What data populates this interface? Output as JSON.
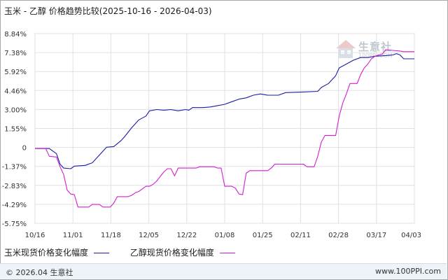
{
  "title": "玉米 - 乙醇 价格趋势比较(2025-10-16 - 2026-04-03)",
  "chart_data": {
    "type": "line",
    "title": "玉米 - 乙醇 价格趋势比较(2025-10-16 - 2026-04-03)",
    "ylim": [
      -5.75,
      8.84
    ],
    "y_ticks": [
      "8.84%",
      "7.38%",
      "5.92%",
      "4.46%",
      "3.00%",
      "1.55%",
      "0",
      "-1.37%",
      "-2.83%",
      "-4.29%",
      "-5.75%"
    ],
    "x_ticks": [
      "10/16",
      "11/01",
      "11/18",
      "12/05",
      "12/22",
      "01/08",
      "01/25",
      "02/11",
      "02/28",
      "03/17",
      "04/03"
    ],
    "grid": true,
    "legend_position": "bottom",
    "series": [
      {
        "name": "玉米现货价格变化幅度",
        "color": "#1c1ca8",
        "values": [
          [
            0,
            0.0
          ],
          [
            4,
            0.0
          ],
          [
            5,
            -0.2
          ],
          [
            6,
            -0.4
          ],
          [
            7,
            -1.2
          ],
          [
            8,
            -1.5
          ],
          [
            10,
            -1.55
          ],
          [
            11,
            -1.35
          ],
          [
            14,
            -1.3
          ],
          [
            16,
            -1.1
          ],
          [
            18,
            -0.5
          ],
          [
            20,
            0.1
          ],
          [
            22,
            0.15
          ],
          [
            24,
            0.6
          ],
          [
            25,
            0.9
          ],
          [
            27,
            1.6
          ],
          [
            29,
            2.2
          ],
          [
            31,
            2.5
          ],
          [
            32,
            2.9
          ],
          [
            34,
            3.0
          ],
          [
            36,
            2.95
          ],
          [
            38,
            3.0
          ],
          [
            40,
            2.9
          ],
          [
            42,
            3.0
          ],
          [
            43,
            2.95
          ],
          [
            44,
            3.15
          ],
          [
            47,
            3.15
          ],
          [
            49,
            3.2
          ],
          [
            51,
            3.3
          ],
          [
            53,
            3.4
          ],
          [
            55,
            3.6
          ],
          [
            57,
            3.8
          ],
          [
            59,
            3.9
          ],
          [
            61,
            4.1
          ],
          [
            63,
            4.2
          ],
          [
            65,
            4.1
          ],
          [
            68,
            4.1
          ],
          [
            70,
            4.3
          ],
          [
            75,
            4.35
          ],
          [
            79,
            4.4
          ],
          [
            80,
            4.7
          ],
          [
            82,
            5.0
          ],
          [
            84,
            5.6
          ],
          [
            85,
            6.2
          ],
          [
            87,
            6.5
          ],
          [
            89,
            6.8
          ],
          [
            91,
            7.0
          ],
          [
            93,
            7.0
          ],
          [
            95,
            7.1
          ],
          [
            98,
            7.15
          ],
          [
            100,
            7.2
          ],
          [
            101,
            7.3
          ],
          [
            102,
            7.2
          ],
          [
            103,
            6.9
          ],
          [
            106,
            6.9
          ]
        ]
      },
      {
        "name": "乙醇现货价格变化幅度",
        "color": "#d21ed2",
        "values": [
          [
            0,
            0.0
          ],
          [
            3,
            0.0
          ],
          [
            4,
            -0.6
          ],
          [
            6,
            -0.65
          ],
          [
            7,
            -1.4
          ],
          [
            8,
            -2.0
          ],
          [
            9,
            -3.2
          ],
          [
            10,
            -3.5
          ],
          [
            11,
            -3.55
          ],
          [
            12,
            -4.5
          ],
          [
            15,
            -4.5
          ],
          [
            16,
            -4.3
          ],
          [
            18,
            -4.3
          ],
          [
            19,
            -4.5
          ],
          [
            21,
            -4.5
          ],
          [
            22,
            -4.2
          ],
          [
            23,
            -3.7
          ],
          [
            26,
            -3.7
          ],
          [
            27,
            -3.6
          ],
          [
            28,
            -3.4
          ],
          [
            29,
            -3.3
          ],
          [
            30,
            -3.1
          ],
          [
            31,
            -2.9
          ],
          [
            32,
            -2.9
          ],
          [
            33,
            -2.75
          ],
          [
            34,
            -2.5
          ],
          [
            36,
            -1.8
          ],
          [
            37,
            -1.55
          ],
          [
            38,
            -1.55
          ],
          [
            39,
            -2.1
          ],
          [
            40,
            -1.5
          ],
          [
            45,
            -1.5
          ],
          [
            46,
            -1.4
          ],
          [
            50,
            -1.4
          ],
          [
            51,
            -1.5
          ],
          [
            52,
            -1.5
          ],
          [
            53,
            -2.9
          ],
          [
            55,
            -2.9
          ],
          [
            56,
            -3.05
          ],
          [
            57,
            -3.5
          ],
          [
            58,
            -3.55
          ],
          [
            59,
            -1.9
          ],
          [
            60,
            -1.7
          ],
          [
            65,
            -1.7
          ],
          [
            66,
            -1.5
          ],
          [
            67,
            -1.2
          ],
          [
            75,
            -1.2
          ],
          [
            76,
            -1.4
          ],
          [
            78,
            -1.4
          ],
          [
            79,
            -0.6
          ],
          [
            80,
            0.5
          ],
          [
            81,
            1.0
          ],
          [
            84,
            1.0
          ],
          [
            85,
            2.5
          ],
          [
            86,
            3.5
          ],
          [
            87,
            4.2
          ],
          [
            88,
            5.0
          ],
          [
            90,
            5.0
          ],
          [
            91,
            5.7
          ],
          [
            92,
            6.2
          ],
          [
            93,
            6.5
          ],
          [
            94,
            6.9
          ],
          [
            95,
            7.1
          ],
          [
            96,
            7.2
          ],
          [
            97,
            7.25
          ],
          [
            98,
            7.6
          ],
          [
            100,
            7.55
          ],
          [
            102,
            7.5
          ],
          [
            103,
            7.45
          ],
          [
            106,
            7.45
          ]
        ]
      }
    ]
  },
  "legend": [
    {
      "label": "玉米现货价格变化幅度",
      "color": "#1c1ca8"
    },
    {
      "label": "乙醇现货价格变化幅度",
      "color": "#d21ed2"
    }
  ],
  "watermark": {
    "text": "生意社",
    "sub": "100PPI.COM"
  },
  "footer": {
    "left": "© 2026.04 生意社",
    "right": "www.100PPI.com"
  }
}
